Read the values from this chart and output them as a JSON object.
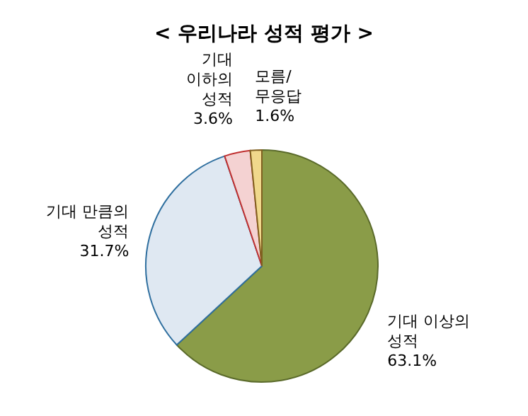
{
  "chart_data": {
    "type": "pie",
    "title": "< 우리나라 성적 평가 >",
    "categories": [
      "기대 이상의 성적",
      "기대 만큼의 성적",
      "기대 이하의 성적",
      "모름/무응답"
    ],
    "values": [
      63.1,
      31.7,
      3.6,
      1.6
    ],
    "colors": [
      "#8a9c48",
      "#dfe8f2",
      "#f4d2d2",
      "#f0d88c"
    ],
    "value_labels": [
      "63.1%",
      "31.7%",
      "3.6%",
      "1.6%"
    ]
  }
}
